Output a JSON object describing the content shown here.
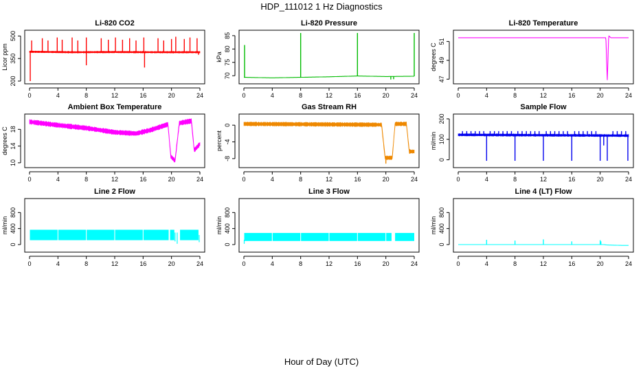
{
  "title": "HDP_111012  1 Hz Diagnostics",
  "xlabel": "Hour of Day (UTC)",
  "chart_data": [
    {
      "type": "line",
      "title": "Li-820 CO2",
      "ylabel": "Licor ppm",
      "color": "#ff0000",
      "xlim": [
        0,
        24
      ],
      "ylim": [
        200,
        520
      ],
      "xticks": [
        "0",
        "4",
        "8",
        "12",
        "16",
        "20",
        "24"
      ],
      "yticks": [
        "200",
        "350",
        "500"
      ],
      "yticks_values": [
        200,
        350,
        500
      ],
      "style": "spiky",
      "series": [
        {
          "name": "co2",
          "base": [
            [
              0,
              395
            ],
            [
              6,
              392
            ],
            [
              12,
              393
            ],
            [
              18,
              392
            ],
            [
              24,
              392
            ]
          ],
          "spread": 12,
          "spikes_up": [
            [
              0.3,
              470
            ],
            [
              1.8,
              485
            ],
            [
              2.6,
              470
            ],
            [
              3.9,
              490
            ],
            [
              4.6,
              475
            ],
            [
              6.0,
              490
            ],
            [
              6.8,
              470
            ],
            [
              8.0,
              490
            ],
            [
              10.1,
              485
            ],
            [
              11.1,
              475
            ],
            [
              12.1,
              490
            ],
            [
              13.1,
              475
            ],
            [
              14.1,
              485
            ],
            [
              15.0,
              470
            ],
            [
              16.1,
              490
            ],
            [
              18.1,
              485
            ],
            [
              18.9,
              470
            ],
            [
              20.0,
              480
            ],
            [
              20.6,
              495
            ],
            [
              21.8,
              480
            ],
            [
              22.6,
              490
            ],
            [
              23.6,
              485
            ]
          ],
          "spikes_down": [
            [
              0.1,
              200
            ],
            [
              8.0,
              305
            ],
            [
              16.2,
              290
            ],
            [
              23.8,
              375
            ]
          ]
        }
      ]
    },
    {
      "type": "line",
      "title": "Li-820 Pressure",
      "ylabel": "kPa",
      "color": "#00bb00",
      "xlim": [
        0,
        24
      ],
      "ylim": [
        68,
        86
      ],
      "xticks": [
        "0",
        "4",
        "8",
        "12",
        "16",
        "20",
        "24"
      ],
      "yticks": [
        "70",
        "75",
        "80",
        "85"
      ],
      "yticks_values": [
        70,
        75,
        80,
        85
      ],
      "style": "thin",
      "series": [
        {
          "name": "pressure",
          "base": [
            [
              0,
              69.4
            ],
            [
              4,
              69.2
            ],
            [
              8,
              69.4
            ],
            [
              12,
              69.6
            ],
            [
              16,
              69.9
            ],
            [
              20,
              69.7
            ],
            [
              24,
              69.8
            ]
          ],
          "spread": 0.4,
          "spikes_up": [
            [
              0.1,
              81.5
            ],
            [
              8.0,
              86
            ],
            [
              16.0,
              86
            ],
            [
              24.0,
              86
            ]
          ],
          "spikes_down": [
            [
              20.7,
              68.6
            ],
            [
              21.1,
              68.7
            ]
          ]
        }
      ]
    },
    {
      "type": "line",
      "title": "Li-820 Temperature",
      "ylabel": "degrees C",
      "color": "#ff00ff",
      "xlim": [
        0,
        24
      ],
      "ylim": [
        46.8,
        51.9
      ],
      "xticks": [
        "0",
        "4",
        "8",
        "12",
        "16",
        "20",
        "24"
      ],
      "yticks": [
        "47",
        "49",
        "51"
      ],
      "yticks_values": [
        47,
        49,
        51
      ],
      "style": "thin",
      "series": [
        {
          "name": "temp",
          "base": [
            [
              0,
              51.4
            ],
            [
              20.8,
              51.4
            ],
            [
              21.0,
              46.9
            ],
            [
              21.2,
              51.6
            ],
            [
              21.5,
              51.4
            ],
            [
              24,
              51.4
            ]
          ],
          "spread": 0.02,
          "spikes_up": [],
          "spikes_down": []
        }
      ]
    },
    {
      "type": "line",
      "title": "Ambient Box Temperature",
      "ylabel": "degrees C",
      "color": "#ff00ff",
      "xlim": [
        0,
        24
      ],
      "ylim": [
        9.5,
        21
      ],
      "xticks": [
        "0",
        "4",
        "8",
        "12",
        "16",
        "20",
        "24"
      ],
      "yticks": [
        "10",
        "14",
        "18"
      ],
      "yticks_values": [
        10,
        14,
        18
      ],
      "style": "band",
      "series": [
        {
          "name": "box_temp",
          "base": [
            [
              0,
              19.8
            ],
            [
              4,
              19.0
            ],
            [
              8,
              18.3
            ],
            [
              12,
              17.3
            ],
            [
              15,
              17.0
            ],
            [
              17,
              17.8
            ],
            [
              19.5,
              19.2
            ],
            [
              19.9,
              11.5
            ],
            [
              20.5,
              10.5
            ],
            [
              21.1,
              19.5
            ],
            [
              22.8,
              20.0
            ],
            [
              23.2,
              13.0
            ],
            [
              24,
              14.5
            ]
          ],
          "spread": 1.2,
          "spikes_up": [],
          "spikes_down": []
        }
      ]
    },
    {
      "type": "line",
      "title": "Gas Stream RH",
      "ylabel": "percent",
      "color": "#ee8800",
      "xlim": [
        0,
        24
      ],
      "ylim": [
        -9.5,
        2
      ],
      "xticks": [
        "0",
        "4",
        "8",
        "12",
        "16",
        "20",
        "24"
      ],
      "yticks": [
        "-8",
        "-4",
        "0"
      ],
      "yticks_values": [
        -8,
        -4,
        0
      ],
      "style": "band",
      "series": [
        {
          "name": "rh",
          "base": [
            [
              0,
              0.3
            ],
            [
              10,
              0.2
            ],
            [
              19.4,
              0.1
            ],
            [
              19.9,
              -7.8
            ],
            [
              20.9,
              -7.8
            ],
            [
              21.3,
              0.3
            ],
            [
              22.9,
              0.3
            ],
            [
              23.3,
              -6.3
            ],
            [
              24,
              -6.3
            ]
          ],
          "spread": 1.0,
          "spikes_up": [],
          "spikes_down": [
            [
              20.0,
              -9.2
            ]
          ]
        }
      ]
    },
    {
      "type": "line",
      "title": "Sample Flow",
      "ylabel": "ml/min",
      "color": "#0000ee",
      "xlim": [
        0,
        24
      ],
      "ylim": [
        -25,
        210
      ],
      "xticks": [
        "0",
        "4",
        "8",
        "12",
        "16",
        "20",
        "24"
      ],
      "yticks": [
        "0",
        "100",
        "200"
      ],
      "yticks_values": [
        0,
        100,
        200
      ],
      "style": "spiky",
      "series": [
        {
          "name": "sample_flow",
          "base": [
            [
              0,
              122
            ],
            [
              24,
              118
            ]
          ],
          "spread": 12,
          "spikes_up": [
            [
              0.6,
              140
            ],
            [
              1.2,
              140
            ],
            [
              1.8,
              140
            ],
            [
              2.4,
              140
            ],
            [
              3.0,
              140
            ],
            [
              3.6,
              140
            ],
            [
              4.5,
              140
            ],
            [
              5.1,
              140
            ],
            [
              5.7,
              140
            ],
            [
              6.3,
              140
            ],
            [
              6.9,
              140
            ],
            [
              7.5,
              140
            ],
            [
              8.4,
              140
            ],
            [
              9.0,
              140
            ],
            [
              9.6,
              140
            ],
            [
              10.2,
              140
            ],
            [
              10.8,
              140
            ],
            [
              11.4,
              140
            ],
            [
              12.4,
              140
            ],
            [
              13.0,
              140
            ],
            [
              13.6,
              140
            ],
            [
              14.2,
              140
            ],
            [
              14.8,
              140
            ],
            [
              15.4,
              140
            ],
            [
              16.4,
              140
            ],
            [
              17.0,
              140
            ],
            [
              17.6,
              140
            ],
            [
              18.2,
              140
            ],
            [
              18.8,
              140
            ],
            [
              19.4,
              140
            ],
            [
              21.8,
              140
            ],
            [
              22.4,
              140
            ],
            [
              23.0,
              140
            ],
            [
              23.6,
              140
            ]
          ],
          "spikes_down": [
            [
              4.0,
              -5
            ],
            [
              8.0,
              -5
            ],
            [
              12.0,
              -5
            ],
            [
              16.0,
              -5
            ],
            [
              20.0,
              -5
            ],
            [
              20.5,
              70
            ],
            [
              21.0,
              -5
            ],
            [
              23.9,
              -5
            ]
          ]
        }
      ]
    },
    {
      "type": "line",
      "title": "Line 2 Flow",
      "ylabel": "ml/min",
      "color": "#00ffff",
      "xlim": [
        0,
        24
      ],
      "ylim": [
        -120,
        1080
      ],
      "xticks": [
        "0",
        "4",
        "8",
        "12",
        "16",
        "20",
        "24"
      ],
      "yticks": [
        "0",
        "400",
        "800"
      ],
      "yticks_values": [
        0,
        400,
        800
      ],
      "style": "block",
      "series": [
        {
          "name": "line2",
          "blocks": [
            [
              0.05,
              3.95
            ],
            [
              4.05,
              7.95
            ],
            [
              8.05,
              11.95
            ],
            [
              12.05,
              15.95
            ],
            [
              16.05,
              19.6
            ],
            [
              19.8,
              20.4
            ],
            [
              21.2,
              23.8
            ]
          ],
          "block_range": [
            110,
            370
          ],
          "extra": [
            [
              20.5,
              80,
              300
            ],
            [
              20.8,
              20,
              300
            ],
            [
              23.9,
              60,
              240
            ]
          ],
          "gaps": [
            [
              19.65,
              19.75
            ],
            [
              20.45,
              21.15
            ]
          ]
        }
      ]
    },
    {
      "type": "line",
      "title": "Line 3 Flow",
      "ylabel": "ml/min",
      "color": "#00ffff",
      "xlim": [
        0,
        24
      ],
      "ylim": [
        -120,
        1080
      ],
      "xticks": [
        "0",
        "4",
        "8",
        "12",
        "16",
        "20",
        "24"
      ],
      "yticks": [
        "0",
        "400",
        "800"
      ],
      "yticks_values": [
        0,
        400,
        800
      ],
      "style": "block",
      "series": [
        {
          "name": "line3",
          "blocks": [
            [
              0.05,
              3.95
            ],
            [
              4.05,
              7.95
            ],
            [
              8.05,
              11.95
            ],
            [
              12.05,
              15.95
            ],
            [
              16.05,
              19.95
            ],
            [
              20.05,
              20.8
            ],
            [
              21.3,
              24.0
            ]
          ],
          "block_range": [
            90,
            290
          ],
          "extra": [
            [
              0.05,
              20,
              120
            ]
          ],
          "gaps": [
            [
              20.85,
              21.25
            ]
          ]
        }
      ]
    },
    {
      "type": "line",
      "title": "Line 4 (LT) Flow",
      "ylabel": "ml/min",
      "color": "#00ffff",
      "xlim": [
        0,
        24
      ],
      "ylim": [
        -120,
        1080
      ],
      "xticks": [
        "0",
        "4",
        "8",
        "12",
        "16",
        "20",
        "24"
      ],
      "yticks": [
        "0",
        "400",
        "800"
      ],
      "yticks_values": [
        0,
        400,
        800
      ],
      "style": "thin",
      "series": [
        {
          "name": "line4",
          "base": [
            [
              0,
              0
            ],
            [
              20.5,
              0
            ],
            [
              21,
              -10
            ],
            [
              23,
              -20
            ],
            [
              24,
              -20
            ]
          ],
          "spread": 4,
          "spikes_up": [
            [
              4.0,
              120
            ],
            [
              8.0,
              100
            ],
            [
              12.0,
              130
            ],
            [
              16.0,
              80
            ],
            [
              20.0,
              110
            ],
            [
              20.1,
              80
            ]
          ],
          "spikes_down": []
        }
      ]
    }
  ]
}
